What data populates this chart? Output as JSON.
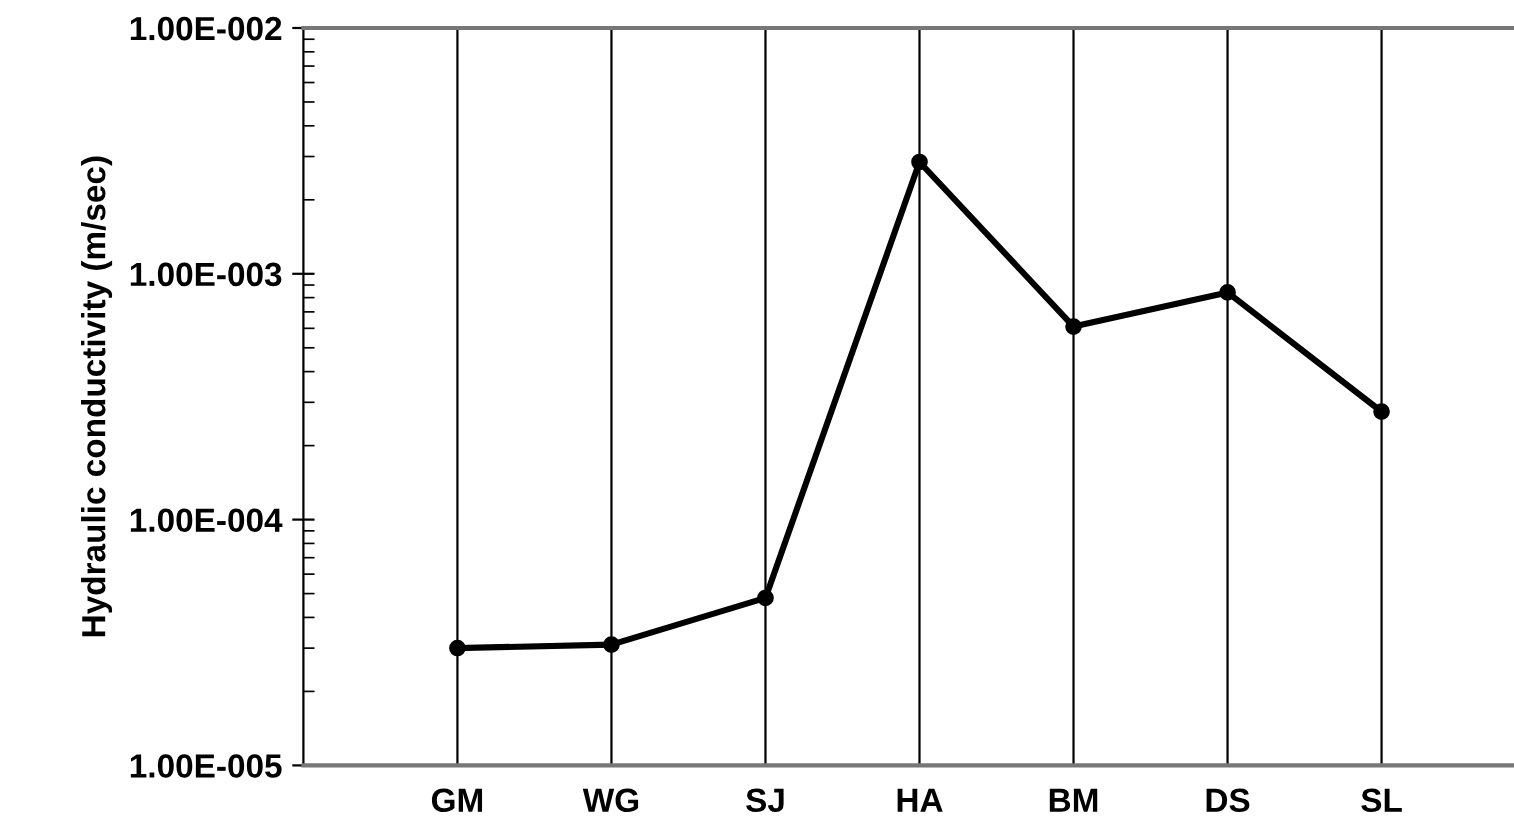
{
  "chart_data": {
    "type": "line",
    "ylabel": "Hydraulic conductivity (m/sec)",
    "categories": [
      "GM",
      "WG",
      "SJ",
      "HA",
      "BM",
      "DS",
      "SL"
    ],
    "series": [
      {
        "color": "#000000",
        "values": [
          3e-05,
          3.1e-05,
          4.8e-05,
          0.00285,
          0.00061,
          0.00084,
          0.000275
        ]
      }
    ],
    "log": true,
    "ylim": [
      1e-05,
      0.01
    ],
    "yticks": [
      {
        "value": 1e-05,
        "label": "1.00E-005"
      },
      {
        "value": 0.0001,
        "label": "1.00E-004"
      },
      {
        "value": 0.001,
        "label": "1.00E-003"
      },
      {
        "value": 0.01,
        "label": "1.00E-002"
      }
    ],
    "grid": "x",
    "marker": "circle",
    "line_style": "solid"
  }
}
